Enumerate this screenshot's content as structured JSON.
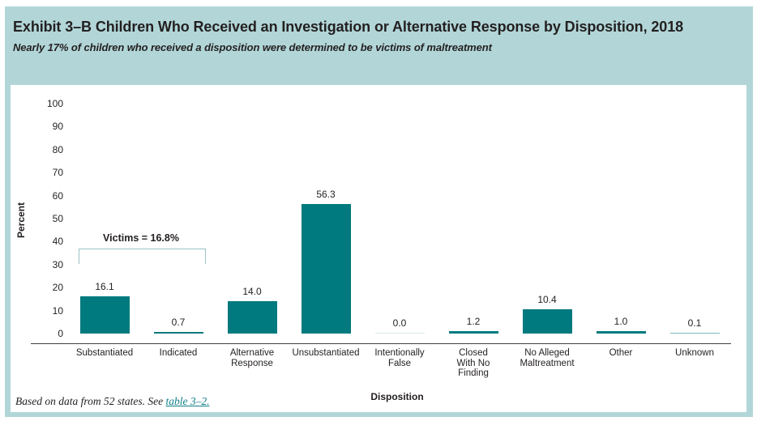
{
  "header": {
    "title": "Exhibit 3–B Children Who Received an Investigation or Alternative Response by Disposition, 2018",
    "subtitle": "Nearly 17% of children who received a disposition were determined to be victims of maltreatment"
  },
  "chart_data": {
    "type": "bar",
    "title": "Children Who Received an Investigation or Alternative Response by Disposition, 2018",
    "xlabel": "Disposition",
    "ylabel": "Percent",
    "ylim": [
      0,
      100
    ],
    "y_step": 10,
    "grid": false,
    "categories": [
      "Substantiated",
      "Indicated",
      "Alternative Response",
      "Unsubstantiated",
      "Intentionally False",
      "Closed With No Finding",
      "No Alleged Maltreatment",
      "Other",
      "Unknown"
    ],
    "category_label_lines": [
      [
        "Substantiated"
      ],
      [
        "Indicated"
      ],
      [
        "Alternative",
        "Response"
      ],
      [
        "Unsubstantiated"
      ],
      [
        "Intentionally",
        "False"
      ],
      [
        "Closed",
        "With No",
        "Finding"
      ],
      [
        "No Alleged",
        "Maltreatment"
      ],
      [
        "Other"
      ],
      [
        "Unknown"
      ]
    ],
    "values": [
      16.1,
      0.7,
      14.0,
      56.3,
      0.0,
      1.2,
      10.4,
      1.0,
      0.1
    ],
    "value_labels": [
      "16.1",
      "0.7",
      "14.0",
      "56.3",
      "0.0",
      "1.2",
      "10.4",
      "1.0",
      "0.1"
    ],
    "bar_tones": [
      "normal",
      "normal",
      "normal",
      "normal",
      "faint",
      "normal",
      "normal",
      "normal",
      "light"
    ],
    "annotation": {
      "label": "Victims = 16.8%",
      "from_category_index": 0,
      "to_category_index": 1,
      "bracket_top_value": 37,
      "bracket_tick_bottom_value": 30.5
    }
  },
  "footer": {
    "text": "Based on data from 52 states. See ",
    "link_label": "table 3–2."
  },
  "colors": {
    "bar": "#007a7e",
    "bar_light": "#7cb9bd",
    "bar_faint": "#d9e9ea",
    "panel": "#b2d6d8",
    "bracket": "#9dc2c5",
    "link": "#0e7f88",
    "axis": "#3f3f3f"
  }
}
